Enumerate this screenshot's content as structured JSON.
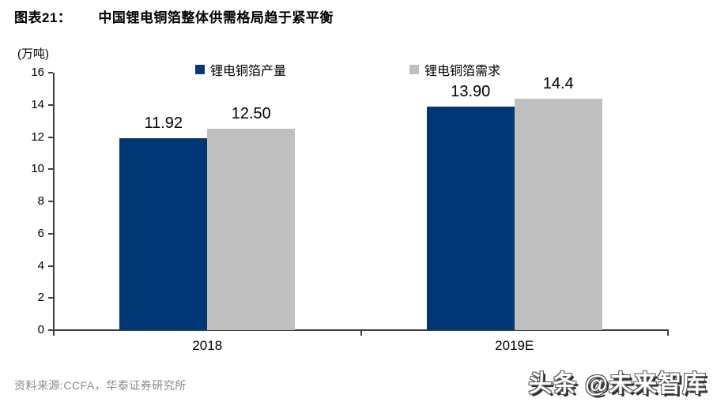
{
  "header": {
    "fig_label": "图表21：",
    "title": "中国锂电铜箔整体供需格局趋于紧平衡"
  },
  "chart_data": {
    "type": "bar",
    "title": "中国锂电铜箔整体供需格局趋于紧平衡",
    "unit_label": "(万吨)",
    "categories": [
      "2018",
      "2019E"
    ],
    "series": [
      {
        "name": "锂电铜箔产量",
        "color": "#003876",
        "values": [
          11.92,
          13.9
        ],
        "labels": [
          "11.92",
          "13.90"
        ]
      },
      {
        "name": "锂电铜箔需求",
        "color": "#c0c0c0",
        "values": [
          12.5,
          14.4
        ],
        "labels": [
          "12.50",
          "14.4"
        ]
      }
    ],
    "ylim": [
      0,
      16
    ],
    "yticks": [
      0,
      2,
      4,
      6,
      8,
      10,
      12,
      14,
      16
    ],
    "legend_position": "top",
    "grid": false
  },
  "footer": {
    "source": "资料来源:CCFA，华泰证券研究所",
    "watermark": "头条 @未来智库"
  },
  "colors": {
    "bar_production": "#003876",
    "bar_demand": "#c0c0c0",
    "accent_line": "#a3231c",
    "footer_line": "#b02a22",
    "axis": "#404040",
    "source_text": "#8b8b8b"
  }
}
